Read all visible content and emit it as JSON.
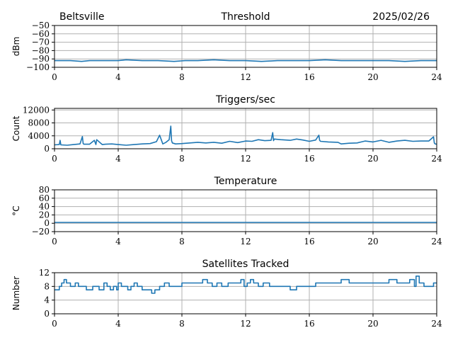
{
  "header": {
    "station": "Beltsville",
    "date": "2025/02/26"
  },
  "style": {
    "series_color": "#1f77b4",
    "grid_color": "#b0b0b0"
  },
  "chart_data": [
    {
      "type": "line",
      "title": "Threshold",
      "ylabel": "dBm",
      "xlim": [
        0,
        24
      ],
      "ylim": [
        -100,
        -50
      ],
      "xticks": [
        0,
        4,
        8,
        12,
        16,
        20,
        24
      ],
      "yticks": [
        -100,
        -90,
        -80,
        -70,
        -60,
        -50
      ],
      "ytick_labels": [
        "−100",
        "−90",
        "−80",
        "−70",
        "−60",
        "−50"
      ],
      "grid": true,
      "series": [
        {
          "x": [
            0,
            1,
            1.7,
            2.2,
            3,
            4,
            4.5,
            5.5,
            6.5,
            7.5,
            8.2,
            9,
            10,
            11,
            12,
            13,
            14,
            15,
            16,
            17,
            18,
            19,
            20,
            21,
            22,
            23,
            24
          ],
          "y": [
            -92,
            -92,
            -93,
            -92,
            -92,
            -92,
            -91,
            -92,
            -92,
            -93,
            -92,
            -92,
            -91,
            -92,
            -92,
            -93,
            -92,
            -92,
            -92,
            -91,
            -92,
            -92,
            -92,
            -92,
            -93,
            -92,
            -92
          ]
        }
      ]
    },
    {
      "type": "line",
      "title": "Triggers/sec",
      "ylabel": "Count",
      "xlim": [
        0,
        24
      ],
      "ylim": [
        0,
        12500
      ],
      "xticks": [
        0,
        4,
        8,
        12,
        16,
        20,
        24
      ],
      "yticks": [
        0,
        4000,
        8000,
        12000
      ],
      "ytick_labels": [
        "0",
        "4000",
        "8000",
        "12000"
      ],
      "grid": true,
      "series": [
        {
          "x": [
            0,
            0.3,
            0.35,
            0.4,
            0.8,
            1.2,
            1.6,
            1.75,
            1.8,
            1.85,
            2.2,
            2.5,
            2.6,
            2.65,
            3.0,
            3.2,
            3.6,
            4.0,
            4.5,
            5.0,
            5.5,
            6.0,
            6.4,
            6.6,
            6.8,
            7.0,
            7.2,
            7.3,
            7.35,
            7.4,
            7.6,
            8.0,
            8.5,
            9.0,
            9.5,
            10.0,
            10.5,
            11.0,
            11.5,
            12.0,
            12.4,
            12.8,
            13.2,
            13.6,
            13.7,
            13.75,
            13.8,
            14.2,
            14.8,
            15.2,
            15.6,
            16.0,
            16.4,
            16.6,
            16.65,
            16.7,
            17.2,
            17.8,
            18.0,
            18.5,
            19.0,
            19.5,
            20.0,
            20.5,
            21.0,
            21.5,
            22.0,
            22.5,
            23.0,
            23.5,
            23.8,
            23.85,
            23.9,
            24.0
          ],
          "y": [
            1200,
            1300,
            2600,
            1200,
            1100,
            1300,
            1500,
            3800,
            1600,
            1400,
            1400,
            2600,
            1300,
            2800,
            1300,
            1400,
            1500,
            1300,
            1100,
            1300,
            1500,
            1600,
            2200,
            4200,
            1500,
            2000,
            2800,
            7000,
            2500,
            1800,
            1500,
            1600,
            1800,
            2000,
            1800,
            2000,
            1700,
            2300,
            1900,
            2400,
            2300,
            2800,
            2500,
            2600,
            5000,
            2500,
            3000,
            2800,
            2600,
            3000,
            2700,
            2300,
            2700,
            4200,
            2600,
            2300,
            2100,
            2000,
            1500,
            1700,
            1800,
            2400,
            2100,
            2600,
            2000,
            2400,
            2600,
            2300,
            2400,
            2400,
            3700,
            1800,
            1500,
            1400
          ]
        }
      ]
    },
    {
      "type": "line",
      "title": "Temperature",
      "ylabel": "°C",
      "xlim": [
        0,
        24
      ],
      "ylim": [
        -20,
        80
      ],
      "xticks": [
        0,
        4,
        8,
        12,
        16,
        20,
        24
      ],
      "yticks": [
        -20,
        0,
        20,
        40,
        60,
        80
      ],
      "ytick_labels": [
        "−20",
        "0",
        "20",
        "40",
        "60",
        "80"
      ],
      "grid": true,
      "series": [
        {
          "x": [
            0,
            24
          ],
          "y": [
            2,
            2
          ]
        }
      ]
    },
    {
      "type": "line",
      "title": "Satellites Tracked",
      "ylabel": "Number",
      "xlim": [
        0,
        24
      ],
      "ylim": [
        0,
        12
      ],
      "xticks": [
        0,
        4,
        8,
        12,
        16,
        20,
        24
      ],
      "yticks": [
        0,
        4,
        8,
        12
      ],
      "ytick_labels": [
        "0",
        "4",
        "8",
        "12"
      ],
      "grid": true,
      "series": [
        {
          "step": true,
          "x": [
            0,
            0.3,
            0.45,
            0.6,
            0.75,
            1.0,
            1.3,
            1.5,
            1.8,
            2.0,
            2.4,
            2.8,
            3.1,
            3.3,
            3.5,
            3.7,
            3.9,
            4.0,
            4.2,
            4.4,
            4.6,
            4.8,
            5.0,
            5.2,
            5.5,
            5.8,
            6.1,
            6.3,
            6.6,
            6.9,
            7.2,
            7.6,
            8.0,
            8.5,
            9.0,
            9.3,
            9.6,
            9.9,
            10.2,
            10.5,
            10.9,
            11.3,
            11.7,
            11.9,
            12.1,
            12.3,
            12.5,
            12.8,
            13.1,
            13.5,
            13.9,
            14.3,
            14.8,
            15.2,
            15.5,
            15.8,
            16.1,
            16.4,
            16.8,
            17.2,
            17.6,
            18.0,
            18.5,
            19.0,
            19.5,
            20.0,
            20.5,
            21.0,
            21.5,
            22.0,
            22.3,
            22.6,
            22.7,
            22.9,
            23.2,
            23.5,
            23.8,
            24.0
          ],
          "y": [
            7,
            8,
            9,
            10,
            9,
            8,
            9,
            8,
            8,
            7,
            8,
            7,
            9,
            8,
            7,
            8,
            7,
            9,
            8,
            8,
            7,
            8,
            9,
            8,
            7,
            7,
            6,
            7,
            8,
            9,
            8,
            8,
            9,
            9,
            9,
            10,
            9,
            8,
            9,
            8,
            9,
            9,
            10,
            8,
            9,
            10,
            9,
            8,
            9,
            8,
            8,
            8,
            7,
            8,
            8,
            8,
            8,
            9,
            9,
            9,
            9,
            10,
            9,
            9,
            9,
            9,
            9,
            10,
            9,
            9,
            10,
            8,
            11,
            9,
            8,
            8,
            9,
            9
          ]
        }
      ]
    }
  ]
}
